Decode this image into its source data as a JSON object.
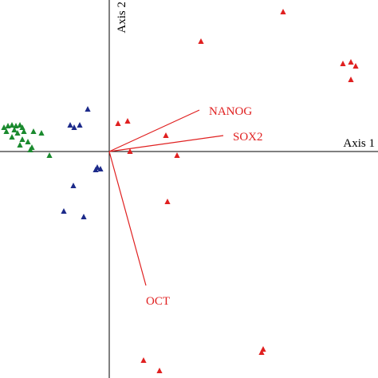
{
  "chart_data": {
    "type": "scatter",
    "xlabel": "Axis 1",
    "ylabel": "Axis 2",
    "xlim": [
      -137,
      337
    ],
    "ylim": [
      -284,
      190
    ],
    "series": [
      {
        "color": "#e02020",
        "x": [
          218,
          115,
          293,
          303,
          309,
          303,
          11,
          23,
          71,
          26,
          85,
          73,
          43,
          63,
          193,
          191
        ],
        "y": [
          175,
          138,
          110,
          112,
          107,
          90,
          35,
          38,
          20,
          0,
          -5,
          -63,
          -262,
          -275,
          -248,
          -252
        ]
      },
      {
        "color": "#1c2a8a",
        "x": [
          -27,
          -37,
          -49,
          -44,
          -15,
          -11,
          -17,
          -45,
          -57,
          -32
        ],
        "y": [
          53,
          33,
          33,
          30,
          -20,
          -22,
          -23,
          -43,
          -75,
          -82
        ]
      },
      {
        "color": "#1a8a2e",
        "x": [
          -132,
          -127,
          -122,
          -117,
          -112,
          -109,
          -119,
          -129,
          -115,
          -107,
          -95,
          -85,
          -122,
          -109,
          -102,
          -97,
          -99,
          -75,
          -112
        ],
        "y": [
          30,
          32,
          33,
          32,
          33,
          30,
          27,
          25,
          23,
          25,
          25,
          23,
          18,
          15,
          12,
          5,
          2,
          -5,
          8
        ]
      }
    ],
    "vectors": [
      {
        "label": "NANOG",
        "x": 113,
        "y": 52
      },
      {
        "label": "SOX2",
        "x": 143,
        "y": 20
      },
      {
        "label": "OCT",
        "x": 46,
        "y": -168
      }
    ]
  }
}
